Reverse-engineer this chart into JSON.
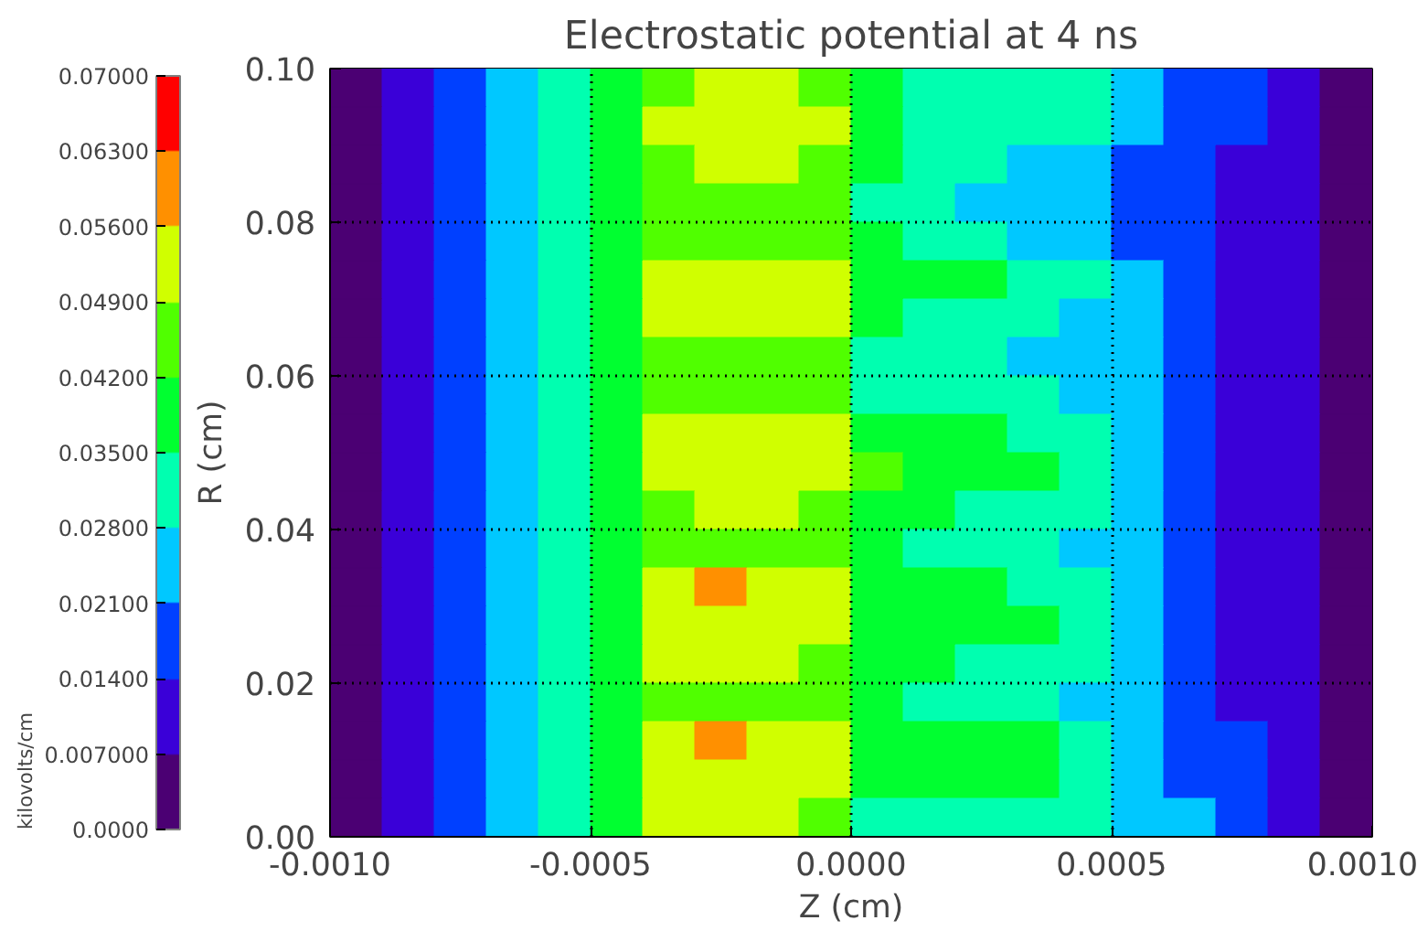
{
  "chart_data": {
    "type": "heatmap",
    "title": "Electrostatic potential at 4 ns",
    "xlabel": "Z (cm)",
    "ylabel": "R (cm)",
    "clabel": "kilovolts/cm",
    "xlim": [
      -0.001,
      0.001
    ],
    "ylim": [
      0,
      0.1
    ],
    "xticks": [
      {
        "value": -0.001,
        "label": "-0.0010"
      },
      {
        "value": -0.0005,
        "label": "-0.0005"
      },
      {
        "value": 0,
        "label": "0.0000"
      },
      {
        "value": 0.0005,
        "label": "0.0005"
      },
      {
        "value": 0.001,
        "label": "0.0010"
      }
    ],
    "yticks": [
      {
        "value": 0,
        "label": "0.00"
      },
      {
        "value": 0.02,
        "label": "0.02"
      },
      {
        "value": 0.04,
        "label": "0.04"
      },
      {
        "value": 0.06,
        "label": "0.06"
      },
      {
        "value": 0.08,
        "label": "0.08"
      },
      {
        "value": 0.1,
        "label": "0.10"
      }
    ],
    "grid": true,
    "clim": [
      0,
      0.07
    ],
    "cticks": [
      {
        "value": 0,
        "label": "0.0000"
      },
      {
        "value": 0.007,
        "label": "0.007000"
      },
      {
        "value": 0.014,
        "label": "0.01400"
      },
      {
        "value": 0.021,
        "label": "0.02100"
      },
      {
        "value": 0.028,
        "label": "0.02800"
      },
      {
        "value": 0.035,
        "label": "0.03500"
      },
      {
        "value": 0.042,
        "label": "0.04200"
      },
      {
        "value": 0.049,
        "label": "0.04900"
      },
      {
        "value": 0.056,
        "label": "0.05600"
      },
      {
        "value": 0.063,
        "label": "0.06300"
      },
      {
        "value": 0.07,
        "label": "0.07000"
      }
    ],
    "colors": [
      "#4b0073",
      "#3a00d8",
      "#0040ff",
      "#00c8ff",
      "#00ffb0",
      "#00ff30",
      "#50ff00",
      "#d0ff00",
      "#ff9000",
      "#ff0000"
    ],
    "cells": [
      [
        0.0035,
        0.0105,
        0.0175,
        0.0245,
        0.0315,
        0.0385,
        0.0455,
        0.0525,
        0.0525,
        0.0455,
        0.0385,
        0.0315,
        0.0315,
        0.0315,
        0.0315,
        0.0245,
        0.0175,
        0.0175,
        0.0105,
        0.0035
      ],
      [
        0.0035,
        0.0105,
        0.0175,
        0.0245,
        0.0315,
        0.0385,
        0.0525,
        0.0525,
        0.0525,
        0.0525,
        0.0385,
        0.0315,
        0.0315,
        0.0315,
        0.0315,
        0.0245,
        0.0175,
        0.0175,
        0.0105,
        0.0035
      ],
      [
        0.0035,
        0.0105,
        0.0175,
        0.0245,
        0.0315,
        0.0385,
        0.0455,
        0.0525,
        0.0525,
        0.0455,
        0.0385,
        0.0315,
        0.0315,
        0.0245,
        0.0245,
        0.0175,
        0.0175,
        0.0105,
        0.0105,
        0.0035
      ],
      [
        0.0035,
        0.0105,
        0.0175,
        0.0245,
        0.0315,
        0.0385,
        0.0455,
        0.0455,
        0.0455,
        0.0455,
        0.0315,
        0.0315,
        0.0245,
        0.0245,
        0.0245,
        0.0175,
        0.0175,
        0.0105,
        0.0105,
        0.0035
      ],
      [
        0.0035,
        0.0105,
        0.0175,
        0.0245,
        0.0315,
        0.0385,
        0.0455,
        0.0455,
        0.0455,
        0.0455,
        0.0385,
        0.0315,
        0.0315,
        0.0245,
        0.0245,
        0.0175,
        0.0175,
        0.0105,
        0.0105,
        0.0035
      ],
      [
        0.0035,
        0.0105,
        0.0175,
        0.0245,
        0.0315,
        0.0385,
        0.0525,
        0.0525,
        0.0525,
        0.0525,
        0.0385,
        0.0385,
        0.0385,
        0.0315,
        0.0315,
        0.0245,
        0.0175,
        0.0105,
        0.0105,
        0.0035
      ],
      [
        0.0035,
        0.0105,
        0.0175,
        0.0245,
        0.0315,
        0.0385,
        0.0525,
        0.0525,
        0.0525,
        0.0525,
        0.0385,
        0.0315,
        0.0315,
        0.0315,
        0.0245,
        0.0245,
        0.0175,
        0.0105,
        0.0105,
        0.0035
      ],
      [
        0.0035,
        0.0105,
        0.0175,
        0.0245,
        0.0315,
        0.0385,
        0.0455,
        0.0455,
        0.0455,
        0.0455,
        0.0315,
        0.0315,
        0.0315,
        0.0245,
        0.0245,
        0.0245,
        0.0175,
        0.0105,
        0.0105,
        0.0035
      ],
      [
        0.0035,
        0.0105,
        0.0175,
        0.0245,
        0.0315,
        0.0385,
        0.0455,
        0.0455,
        0.0455,
        0.0455,
        0.0315,
        0.0315,
        0.0315,
        0.0315,
        0.0245,
        0.0245,
        0.0175,
        0.0105,
        0.0105,
        0.0035
      ],
      [
        0.0035,
        0.0105,
        0.0175,
        0.0245,
        0.0315,
        0.0385,
        0.0525,
        0.0525,
        0.0525,
        0.0525,
        0.0385,
        0.0385,
        0.0385,
        0.0315,
        0.0315,
        0.0245,
        0.0175,
        0.0105,
        0.0105,
        0.0035
      ],
      [
        0.0035,
        0.0105,
        0.0175,
        0.0245,
        0.0315,
        0.0385,
        0.0525,
        0.0525,
        0.0525,
        0.0525,
        0.0455,
        0.0385,
        0.0385,
        0.0385,
        0.0315,
        0.0245,
        0.0175,
        0.0105,
        0.0105,
        0.0035
      ],
      [
        0.0035,
        0.0105,
        0.0175,
        0.0245,
        0.0315,
        0.0385,
        0.0455,
        0.0525,
        0.0525,
        0.0455,
        0.0385,
        0.0385,
        0.0315,
        0.0315,
        0.0315,
        0.0245,
        0.0175,
        0.0105,
        0.0105,
        0.0035
      ],
      [
        0.0035,
        0.0105,
        0.0175,
        0.0245,
        0.0315,
        0.0385,
        0.0455,
        0.0455,
        0.0455,
        0.0455,
        0.0385,
        0.0315,
        0.0315,
        0.0315,
        0.0245,
        0.0245,
        0.0175,
        0.0105,
        0.0105,
        0.0035
      ],
      [
        0.0035,
        0.0105,
        0.0175,
        0.0245,
        0.0315,
        0.0385,
        0.0525,
        0.0595,
        0.0525,
        0.0525,
        0.0385,
        0.0385,
        0.0385,
        0.0315,
        0.0315,
        0.0245,
        0.0175,
        0.0105,
        0.0105,
        0.0035
      ],
      [
        0.0035,
        0.0105,
        0.0175,
        0.0245,
        0.0315,
        0.0385,
        0.0525,
        0.0525,
        0.0525,
        0.0525,
        0.0385,
        0.0385,
        0.0385,
        0.0385,
        0.0315,
        0.0245,
        0.0175,
        0.0105,
        0.0105,
        0.0035
      ],
      [
        0.0035,
        0.0105,
        0.0175,
        0.0245,
        0.0315,
        0.0385,
        0.0525,
        0.0525,
        0.0525,
        0.0455,
        0.0385,
        0.0385,
        0.0315,
        0.0315,
        0.0315,
        0.0245,
        0.0175,
        0.0105,
        0.0105,
        0.0035
      ],
      [
        0.0035,
        0.0105,
        0.0175,
        0.0245,
        0.0315,
        0.0385,
        0.0455,
        0.0455,
        0.0455,
        0.0455,
        0.0385,
        0.0315,
        0.0315,
        0.0315,
        0.0245,
        0.0245,
        0.0175,
        0.0105,
        0.0105,
        0.0035
      ],
      [
        0.0035,
        0.0105,
        0.0175,
        0.0245,
        0.0315,
        0.0385,
        0.0525,
        0.0595,
        0.0525,
        0.0525,
        0.0385,
        0.0385,
        0.0385,
        0.0385,
        0.0315,
        0.0245,
        0.0175,
        0.0175,
        0.0105,
        0.0035
      ],
      [
        0.0035,
        0.0105,
        0.0175,
        0.0245,
        0.0315,
        0.0385,
        0.0525,
        0.0525,
        0.0525,
        0.0525,
        0.0385,
        0.0385,
        0.0385,
        0.0385,
        0.0315,
        0.0245,
        0.0175,
        0.0175,
        0.0105,
        0.0035
      ],
      [
        0.0035,
        0.0105,
        0.0175,
        0.0245,
        0.0315,
        0.0385,
        0.0525,
        0.0525,
        0.0525,
        0.0455,
        0.0315,
        0.0315,
        0.0315,
        0.0315,
        0.0315,
        0.0245,
        0.0245,
        0.0175,
        0.0105,
        0.0035
      ]
    ]
  }
}
